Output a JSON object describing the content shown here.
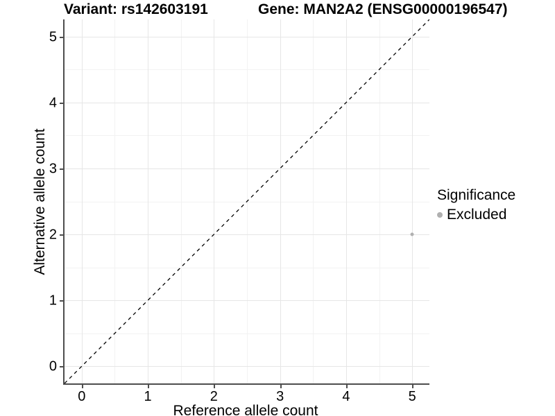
{
  "header": {
    "variant_title": "Variant: rs142603191",
    "gene_title": "Gene: MAN2A2 (ENSG00000196547)"
  },
  "axes": {
    "x_label": "Reference allele count",
    "y_label": "Alternative allele count"
  },
  "legend": {
    "title": "Significance",
    "items": [
      {
        "label": "Excluded",
        "color": "#b0b0b0"
      }
    ]
  },
  "chart_data": {
    "type": "scatter",
    "title_left": "Variant: rs142603191",
    "title_right": "Gene: MAN2A2 (ENSG00000196547)",
    "xlabel": "Reference allele count",
    "ylabel": "Alternative allele count",
    "xlim": [
      -0.26,
      5.26
    ],
    "ylim": [
      -0.26,
      5.26
    ],
    "x_ticks": [
      0,
      1,
      2,
      3,
      4,
      5
    ],
    "y_ticks": [
      0,
      1,
      2,
      3,
      4,
      5
    ],
    "x_minor_ticks": [
      0.5,
      1.5,
      2.5,
      3.5,
      4.5
    ],
    "y_minor_ticks": [
      0.5,
      1.5,
      2.5,
      3.5,
      4.5
    ],
    "grid": "major-and-minor",
    "legend_position": "right",
    "series": [
      {
        "name": "Excluded",
        "color": "#b0b0b0",
        "points": [
          {
            "x": 5,
            "y": 2
          }
        ]
      }
    ],
    "reference_line": {
      "type": "abline",
      "slope": 1,
      "intercept": 0,
      "style": "dashed",
      "color": "#000000"
    },
    "colors": {
      "grid_major": "#e6e6e6",
      "grid_minor": "#f2f2f2",
      "axis_line": "#4d4d4d",
      "point_excluded": "#b0b0b0"
    }
  }
}
